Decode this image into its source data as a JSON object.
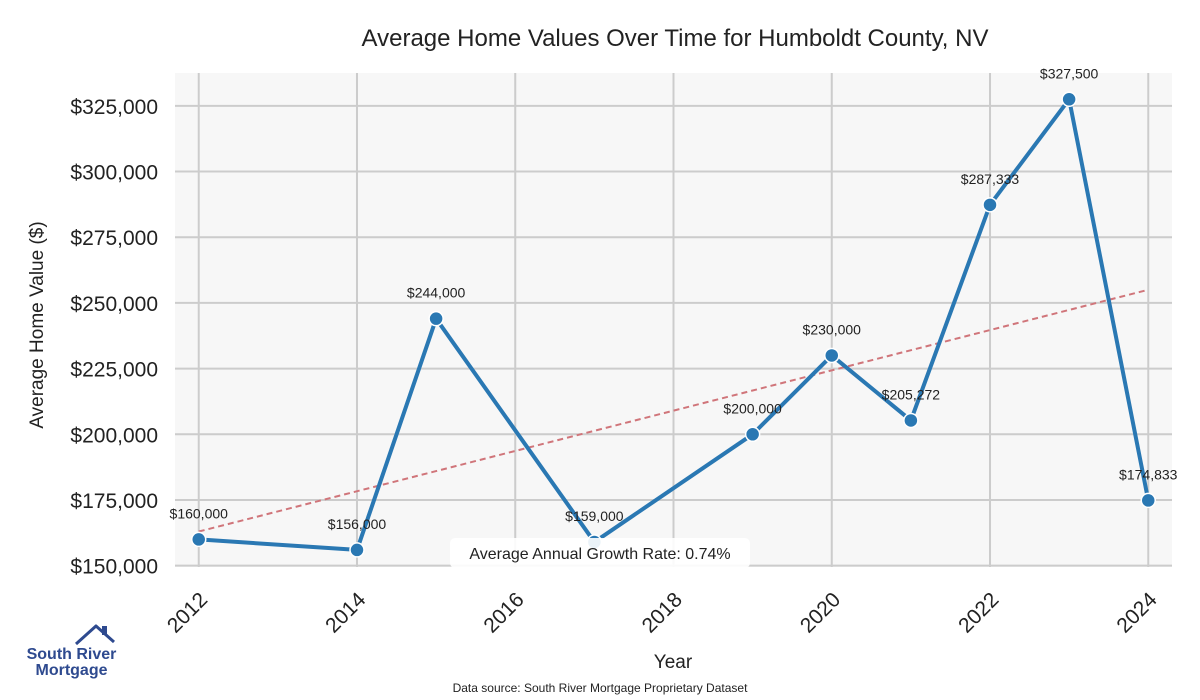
{
  "chart_data": {
    "type": "line",
    "title": "Average Home Values Over Time for Humboldt County, NV",
    "xlabel": "Year",
    "ylabel": "Average Home Value ($)",
    "x": [
      2012,
      2014,
      2015,
      2017,
      2019,
      2020,
      2021,
      2022,
      2023,
      2024
    ],
    "series": [
      {
        "values": [
          160000,
          156000,
          244000,
          159000,
          200000,
          230000,
          205272,
          287333,
          327500,
          174833
        ],
        "labels": [
          "$160,000",
          "$156,000",
          "$244,000",
          "$159,000",
          "$200,000",
          "$230,000",
          "$205,272",
          "$287,333",
          "$327,500",
          "$174,833"
        ],
        "color": "#2a78b3"
      }
    ],
    "trendline": {
      "start": [
        2012,
        163000
      ],
      "end": [
        2024,
        255000
      ],
      "color": "#d0757a",
      "style": "dashed"
    },
    "xlim": [
      2011.7,
      2024.3
    ],
    "ylim": [
      149500,
      337500
    ],
    "x_ticks": [
      2012,
      2014,
      2016,
      2018,
      2020,
      2022,
      2024
    ],
    "y_ticks": [
      150000,
      175000,
      200000,
      225000,
      250000,
      275000,
      300000,
      325000
    ],
    "y_tick_labels": [
      "$150,000",
      "$175,000",
      "$200,000",
      "$225,000",
      "$250,000",
      "$275,000",
      "$300,000",
      "$325,000"
    ],
    "grid": true,
    "annotation": "Average Annual Growth Rate: 0.74%",
    "background": "#f7f7f7",
    "grid_color": "#cccccc"
  },
  "branding": {
    "logo_line1": "South River",
    "logo_line2": "Mortgage",
    "brand_color": "#2e4a8f"
  },
  "footer": {
    "source": "Data source: South River Mortgage Proprietary Dataset"
  }
}
